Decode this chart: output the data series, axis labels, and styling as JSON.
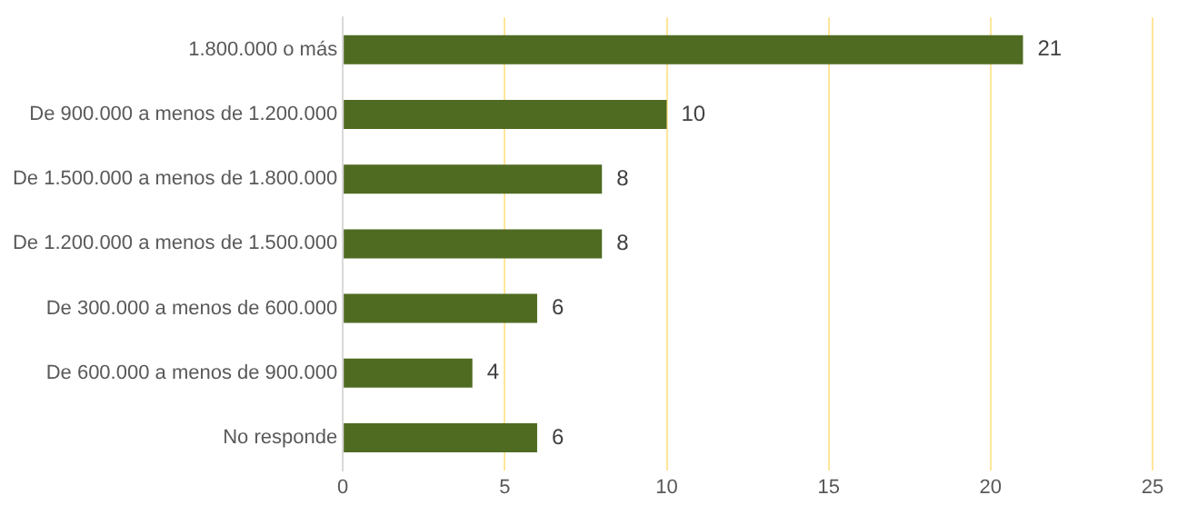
{
  "chart_data": {
    "type": "bar",
    "orientation": "horizontal",
    "categories": [
      "1.800.000 o más",
      "De 900.000 a menos de 1.200.000",
      "De 1.500.000 a menos de 1.800.000",
      "De 1.200.000 a menos de 1.500.000",
      "De 300.000 a menos de 600.000",
      "De 600.000 a menos de 900.000",
      "No responde"
    ],
    "values": [
      21,
      10,
      8,
      8,
      6,
      4,
      6
    ],
    "color": "#4f6b22",
    "xlim": [
      0,
      25
    ],
    "xticks": [
      0,
      5,
      10,
      15,
      20,
      25
    ],
    "grid": "x",
    "data_labels": true
  }
}
